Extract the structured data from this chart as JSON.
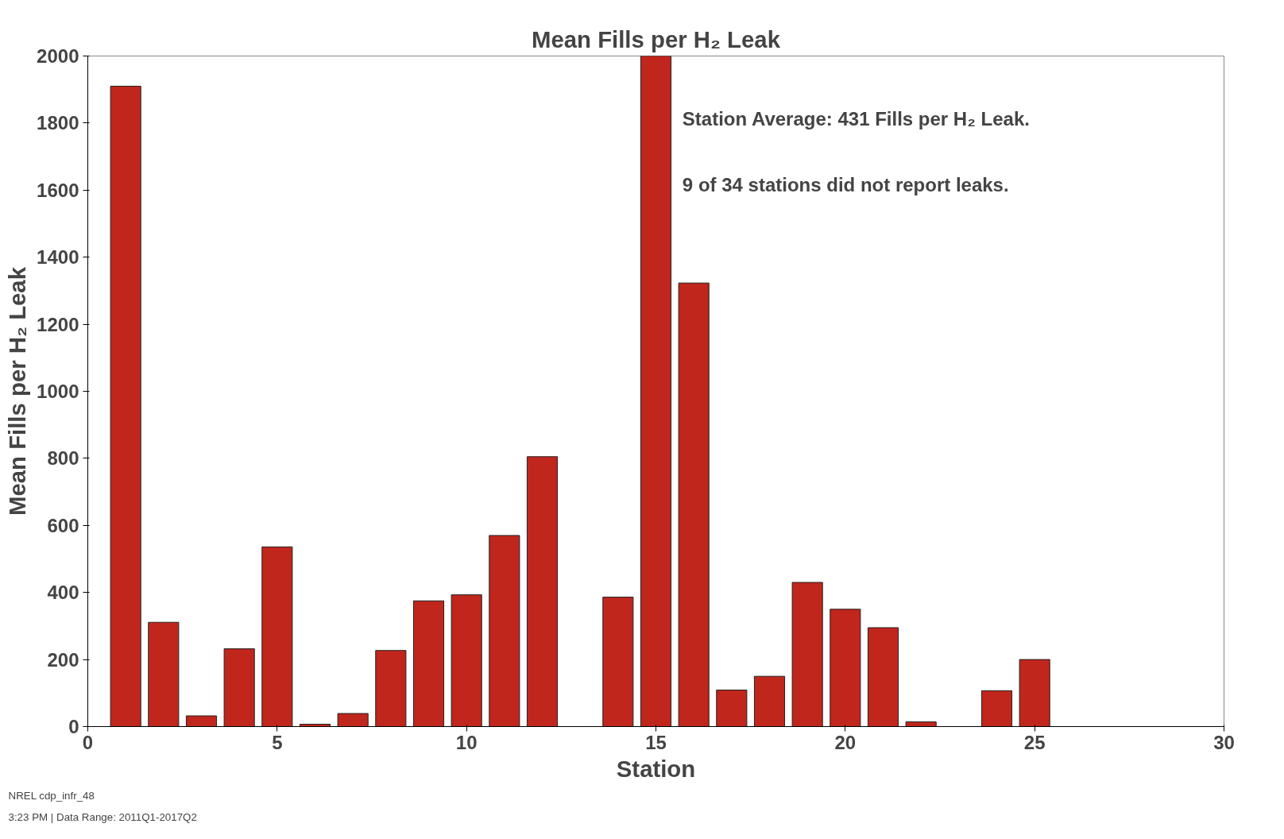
{
  "chart_data": {
    "type": "bar",
    "title": "Mean Fills per H₂ Leak",
    "xlabel": "Station",
    "ylabel": "Mean Fills per H₂ Leak",
    "x": [
      1,
      2,
      3,
      4,
      5,
      6,
      7,
      8,
      9,
      10,
      11,
      12,
      13,
      14,
      15,
      16,
      17,
      18,
      19,
      20,
      21,
      22,
      23,
      24,
      25
    ],
    "values": [
      1910,
      311,
      32,
      232,
      536,
      7,
      39,
      227,
      375,
      393,
      570,
      805,
      null,
      386,
      2000,
      1323,
      109,
      150,
      430,
      350,
      295,
      14,
      null,
      107,
      200
    ],
    "color": "#c0261c",
    "xlim": [
      0,
      30
    ],
    "xticks": [
      0,
      5,
      10,
      15,
      20,
      25,
      30
    ],
    "ylim": [
      0,
      2000
    ],
    "yticks": [
      0,
      200,
      400,
      600,
      800,
      1000,
      1200,
      1400,
      1600,
      1800,
      2000
    ],
    "grid": false,
    "annotations": [
      "Station Average: 431 Fills per H₂ Leak.",
      "9 of 34 stations did not report leaks.",
      "NREL cdp_infr_48",
      "3:23 PM | Data Range: 2011Q1-2017Q2"
    ]
  }
}
